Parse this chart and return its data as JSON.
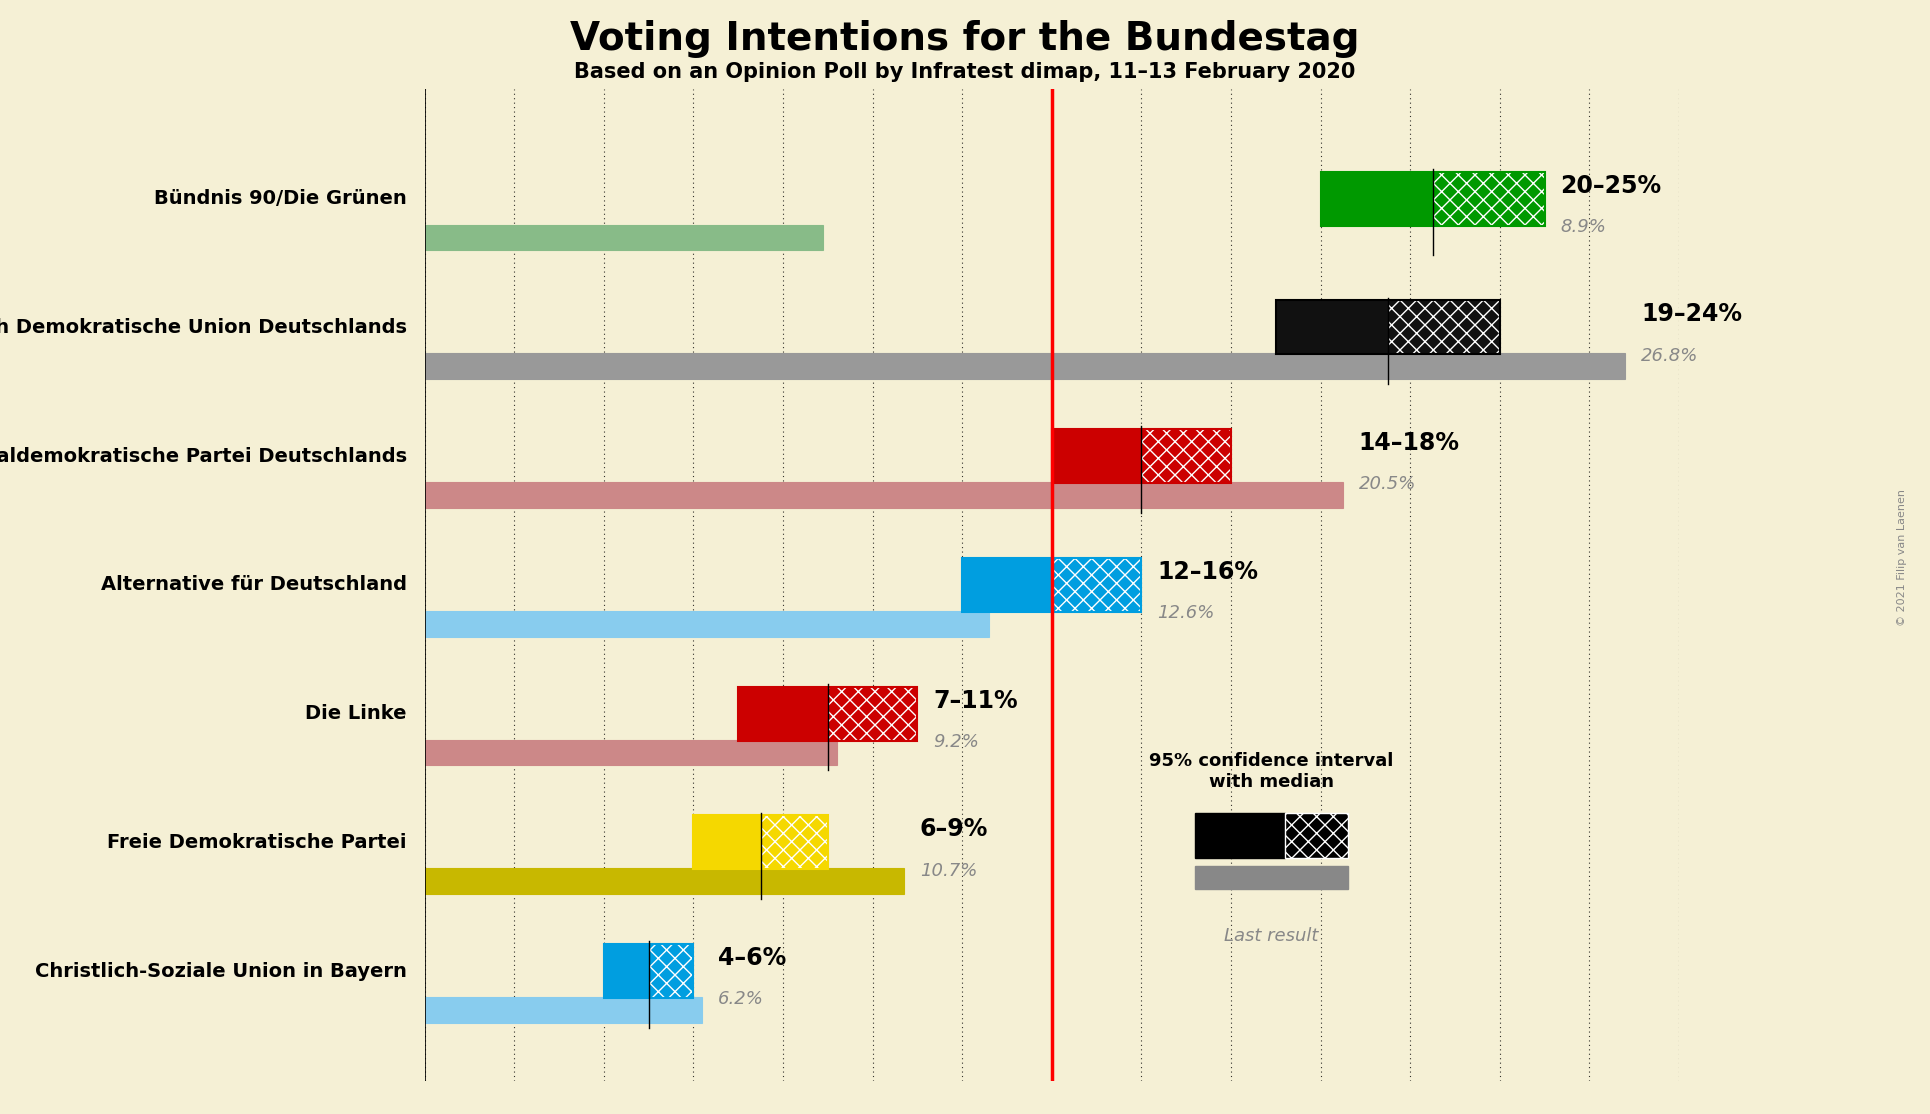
{
  "title": "Voting Intentions for the Bundestag",
  "subtitle": "Based on an Opinion Poll by Infratest dimap, 11–13 February 2020",
  "background_color": "#f5f0d5",
  "red_line_x": 14.0,
  "x_min": 0,
  "x_max": 28,
  "parties": [
    {
      "name": "Bündnis 90/Die Grünen",
      "ci_low": 20,
      "ci_high": 25,
      "last_result": 8.9,
      "color": "#009900",
      "last_color": "#88bb88",
      "range_label": "20–25%",
      "result_label": "8.9%"
    },
    {
      "name": "Christlich Demokratische Union Deutschlands",
      "ci_low": 19,
      "ci_high": 24,
      "last_result": 26.8,
      "color": "#111111",
      "last_color": "#999999",
      "range_label": "19–24%",
      "result_label": "26.8%"
    },
    {
      "name": "Sozialdemokratische Partei Deutschlands",
      "ci_low": 14,
      "ci_high": 18,
      "last_result": 20.5,
      "color": "#cc0000",
      "last_color": "#cc8888",
      "range_label": "14–18%",
      "result_label": "20.5%"
    },
    {
      "name": "Alternative für Deutschland",
      "ci_low": 12,
      "ci_high": 16,
      "last_result": 12.6,
      "color": "#009ee0",
      "last_color": "#88ccee",
      "range_label": "12–16%",
      "result_label": "12.6%"
    },
    {
      "name": "Die Linke",
      "ci_low": 7,
      "ci_high": 11,
      "last_result": 9.2,
      "color": "#cc0000",
      "last_color": "#cc8888",
      "range_label": "7–11%",
      "result_label": "9.2%"
    },
    {
      "name": "Freie Demokratische Partei",
      "ci_low": 6,
      "ci_high": 9,
      "last_result": 10.7,
      "color": "#f5d800",
      "last_color": "#c8b800",
      "range_label": "6–9%",
      "result_label": "10.7%"
    },
    {
      "name": "Christlich-Soziale Union in Bayern",
      "ci_low": 4,
      "ci_high": 6,
      "last_result": 6.2,
      "color": "#009ee0",
      "last_color": "#88ccee",
      "range_label": "4–6%",
      "result_label": "6.2%"
    }
  ],
  "legend_ci_label": "95% confidence interval\nwith median",
  "legend_last_label": "Last result",
  "copyright": "© 2021 Filip van Laenen",
  "bar_height": 0.42,
  "last_bar_height": 0.2,
  "bar_spacing": 1.0
}
